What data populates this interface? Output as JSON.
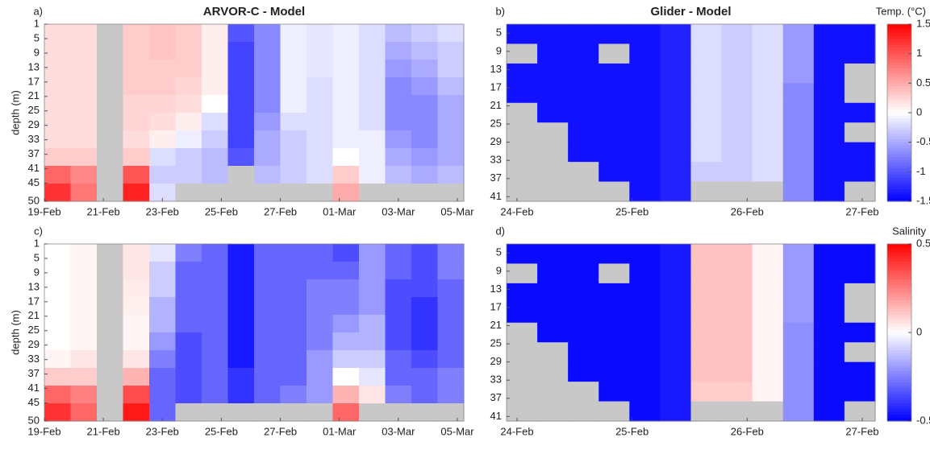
{
  "chart_data": [
    {
      "type": "heatmap",
      "panel_label": "a)",
      "title": "ARVOR-C - Model",
      "ylabel": "depth (m)",
      "xticks": [
        "19-Feb",
        "21-Feb",
        "23-Feb",
        "25-Feb",
        "27-Feb",
        "01-Mar",
        "03-Mar",
        "05-Mar"
      ],
      "ylim": [
        1,
        50
      ],
      "yticks": [
        1,
        5,
        9,
        13,
        17,
        21,
        25,
        29,
        33,
        37,
        41,
        45,
        50
      ],
      "clim": [
        -1.5,
        1.5
      ],
      "missing_color": "#c8c8c8",
      "values": [
        [
          0.2,
          0.2,
          null,
          0.3,
          0.35,
          0.3,
          0.1,
          -1.0,
          -0.7,
          -0.1,
          -0.15,
          -0.1,
          -0.2,
          -0.4,
          -0.3,
          -0.2
        ],
        [
          0.2,
          0.2,
          null,
          0.3,
          0.35,
          0.3,
          0.1,
          -1.1,
          -0.7,
          -0.1,
          -0.15,
          -0.1,
          -0.2,
          -0.5,
          -0.4,
          -0.3
        ],
        [
          0.2,
          0.2,
          null,
          0.3,
          0.3,
          0.3,
          0.1,
          -1.1,
          -0.7,
          -0.1,
          -0.15,
          -0.1,
          -0.2,
          -0.6,
          -0.5,
          -0.3
        ],
        [
          0.2,
          0.2,
          null,
          0.3,
          0.3,
          0.25,
          0.1,
          -1.1,
          -0.7,
          -0.1,
          -0.2,
          -0.1,
          -0.2,
          -0.7,
          -0.6,
          -0.4
        ],
        [
          0.2,
          0.2,
          null,
          0.25,
          0.25,
          0.2,
          0.0,
          -1.1,
          -0.7,
          -0.1,
          -0.2,
          -0.1,
          -0.2,
          -0.7,
          -0.7,
          -0.5
        ],
        [
          0.2,
          0.2,
          null,
          0.25,
          0.2,
          0.1,
          -0.2,
          -1.1,
          -0.6,
          -0.2,
          -0.2,
          -0.1,
          -0.2,
          -0.7,
          -0.7,
          -0.5
        ],
        [
          0.2,
          0.2,
          null,
          0.2,
          0.1,
          -0.1,
          -0.3,
          -1.1,
          -0.5,
          -0.3,
          -0.2,
          -0.1,
          -0.1,
          -0.6,
          -0.7,
          -0.5
        ],
        [
          0.3,
          0.3,
          null,
          0.3,
          -0.2,
          -0.3,
          -0.4,
          -1.0,
          -0.5,
          -0.3,
          -0.2,
          0.0,
          -0.1,
          -0.5,
          -0.6,
          -0.5
        ],
        [
          0.9,
          0.7,
          null,
          1.0,
          -0.3,
          -0.3,
          -0.4,
          null,
          -0.4,
          -0.3,
          -0.2,
          0.3,
          -0.1,
          -0.4,
          -0.5,
          -0.4
        ],
        [
          1.2,
          0.8,
          null,
          1.3,
          -0.2,
          null,
          null,
          null,
          null,
          null,
          null,
          0.5,
          null,
          null,
          null,
          null
        ]
      ]
    },
    {
      "type": "heatmap",
      "panel_label": "b)",
      "title": "Glider - Model",
      "xticks": [
        "24-Feb",
        "25-Feb",
        "26-Feb",
        "27-Feb"
      ],
      "ylim": [
        3,
        42
      ],
      "yticks": [
        5,
        9,
        13,
        17,
        21,
        25,
        29,
        33,
        37,
        41
      ],
      "clim": [
        -1.5,
        1.5
      ],
      "missing_color": "#c8c8c8",
      "colorbar": {
        "label": "Temp. (°C)",
        "ticks": [
          -1.5,
          -1,
          -0.5,
          0,
          0.5,
          1,
          1.5
        ]
      },
      "values": [
        [
          -1.4,
          -1.4,
          -1.4,
          -1.4,
          -1.4,
          -1.3,
          -0.2,
          -0.3,
          -0.2,
          -0.6,
          -1.4,
          -1.4
        ],
        [
          null,
          -1.4,
          -1.4,
          null,
          -1.4,
          -1.3,
          -0.2,
          -0.3,
          -0.2,
          -0.6,
          -1.4,
          -1.4
        ],
        [
          -1.4,
          -1.4,
          -1.4,
          -1.4,
          -1.4,
          -1.3,
          -0.2,
          -0.3,
          -0.2,
          -0.6,
          -1.4,
          null
        ],
        [
          -1.4,
          -1.4,
          -1.4,
          -1.4,
          -1.4,
          -1.3,
          -0.2,
          -0.3,
          -0.2,
          -0.7,
          -1.4,
          null
        ],
        [
          null,
          -1.4,
          -1.4,
          -1.4,
          -1.4,
          -1.3,
          -0.2,
          -0.3,
          -0.2,
          -0.7,
          -1.4,
          -1.4
        ],
        [
          null,
          null,
          -1.4,
          -1.4,
          -1.4,
          -1.3,
          -0.2,
          -0.3,
          -0.2,
          -0.7,
          -1.4,
          null
        ],
        [
          null,
          null,
          -1.4,
          -1.4,
          -1.4,
          -1.3,
          -0.2,
          -0.3,
          -0.2,
          -0.7,
          -1.4,
          -1.4
        ],
        [
          null,
          null,
          null,
          -1.4,
          -1.4,
          -1.3,
          -0.3,
          -0.3,
          -0.2,
          -0.7,
          -1.4,
          -1.4
        ],
        [
          null,
          null,
          null,
          null,
          -1.4,
          -1.3,
          null,
          null,
          null,
          -0.7,
          -1.4,
          null
        ]
      ]
    },
    {
      "type": "heatmap",
      "panel_label": "c)",
      "ylabel": "depth (m)",
      "xticks": [
        "19-Feb",
        "21-Feb",
        "23-Feb",
        "25-Feb",
        "27-Feb",
        "01-Mar",
        "03-Mar",
        "05-Mar"
      ],
      "ylim": [
        1,
        50
      ],
      "yticks": [
        1,
        5,
        9,
        13,
        17,
        21,
        25,
        29,
        33,
        37,
        41,
        45,
        50
      ],
      "clim": [
        -0.5,
        0.5
      ],
      "missing_color": "#c8c8c8",
      "values": [
        [
          0.0,
          0.02,
          null,
          0.05,
          -0.05,
          -0.25,
          -0.3,
          -0.45,
          -0.3,
          -0.3,
          -0.3,
          -0.35,
          -0.2,
          -0.3,
          -0.35,
          -0.25
        ],
        [
          0.0,
          0.02,
          null,
          0.05,
          -0.1,
          -0.3,
          -0.3,
          -0.45,
          -0.3,
          -0.3,
          -0.3,
          -0.3,
          -0.2,
          -0.3,
          -0.35,
          -0.25
        ],
        [
          0.0,
          0.02,
          null,
          0.04,
          -0.1,
          -0.3,
          -0.3,
          -0.45,
          -0.3,
          -0.3,
          -0.25,
          -0.25,
          -0.2,
          -0.35,
          -0.35,
          -0.3
        ],
        [
          0.0,
          0.02,
          null,
          0.03,
          -0.15,
          -0.3,
          -0.3,
          -0.45,
          -0.3,
          -0.3,
          -0.25,
          -0.25,
          -0.2,
          -0.35,
          -0.4,
          -0.3
        ],
        [
          0.0,
          0.02,
          null,
          0.02,
          -0.15,
          -0.3,
          -0.3,
          -0.45,
          -0.3,
          -0.3,
          -0.25,
          -0.2,
          -0.15,
          -0.35,
          -0.4,
          -0.3
        ],
        [
          0.0,
          0.02,
          null,
          0.02,
          -0.2,
          -0.35,
          -0.3,
          -0.45,
          -0.3,
          -0.3,
          -0.25,
          -0.15,
          -0.15,
          -0.35,
          -0.4,
          -0.3
        ],
        [
          0.02,
          0.05,
          null,
          0.05,
          -0.25,
          -0.35,
          -0.3,
          -0.45,
          -0.3,
          -0.3,
          -0.2,
          -0.1,
          -0.1,
          -0.3,
          -0.35,
          -0.3
        ],
        [
          0.1,
          0.1,
          null,
          0.15,
          -0.3,
          -0.35,
          -0.3,
          -0.4,
          -0.3,
          -0.3,
          -0.2,
          0.0,
          -0.05,
          -0.3,
          -0.3,
          -0.25
        ],
        [
          0.3,
          0.25,
          null,
          0.35,
          -0.3,
          -0.35,
          -0.3,
          -0.4,
          -0.3,
          -0.25,
          -0.2,
          0.15,
          0.05,
          -0.25,
          -0.3,
          -0.25
        ],
        [
          0.4,
          0.3,
          null,
          0.45,
          -0.3,
          null,
          null,
          null,
          null,
          null,
          null,
          0.3,
          null,
          null,
          null,
          null
        ]
      ]
    },
    {
      "type": "heatmap",
      "panel_label": "d)",
      "xticks": [
        "24-Feb",
        "25-Feb",
        "26-Feb",
        "27-Feb"
      ],
      "ylim": [
        3,
        42
      ],
      "yticks": [
        5,
        9,
        13,
        17,
        21,
        25,
        29,
        33,
        37,
        41
      ],
      "clim": [
        -0.5,
        0.5
      ],
      "missing_color": "#c8c8c8",
      "colorbar": {
        "label": "Salinity",
        "ticks": [
          -0.5,
          0,
          0.5
        ]
      },
      "values": [
        [
          -0.48,
          -0.48,
          -0.48,
          -0.48,
          -0.48,
          -0.45,
          0.12,
          0.12,
          0.02,
          -0.2,
          -0.48,
          -0.48
        ],
        [
          null,
          -0.48,
          -0.48,
          null,
          -0.48,
          -0.45,
          0.12,
          0.12,
          0.02,
          -0.2,
          -0.48,
          -0.48
        ],
        [
          -0.48,
          -0.48,
          -0.48,
          -0.48,
          -0.48,
          -0.45,
          0.12,
          0.12,
          0.02,
          -0.2,
          -0.48,
          null
        ],
        [
          -0.48,
          -0.48,
          -0.48,
          -0.48,
          -0.48,
          -0.45,
          0.12,
          0.12,
          0.02,
          -0.2,
          -0.48,
          null
        ],
        [
          null,
          -0.48,
          -0.48,
          -0.48,
          -0.48,
          -0.45,
          0.12,
          0.12,
          0.02,
          -0.22,
          -0.48,
          -0.48
        ],
        [
          null,
          null,
          -0.48,
          -0.48,
          -0.48,
          -0.45,
          0.12,
          0.12,
          0.02,
          -0.22,
          -0.48,
          null
        ],
        [
          null,
          null,
          -0.48,
          -0.48,
          -0.48,
          -0.45,
          0.12,
          0.12,
          0.02,
          -0.22,
          -0.48,
          -0.48
        ],
        [
          null,
          null,
          null,
          -0.48,
          -0.48,
          -0.45,
          0.1,
          0.1,
          0.02,
          -0.22,
          -0.48,
          -0.48
        ],
        [
          null,
          null,
          null,
          null,
          -0.48,
          -0.45,
          null,
          null,
          null,
          -0.22,
          -0.48,
          null
        ]
      ]
    }
  ]
}
